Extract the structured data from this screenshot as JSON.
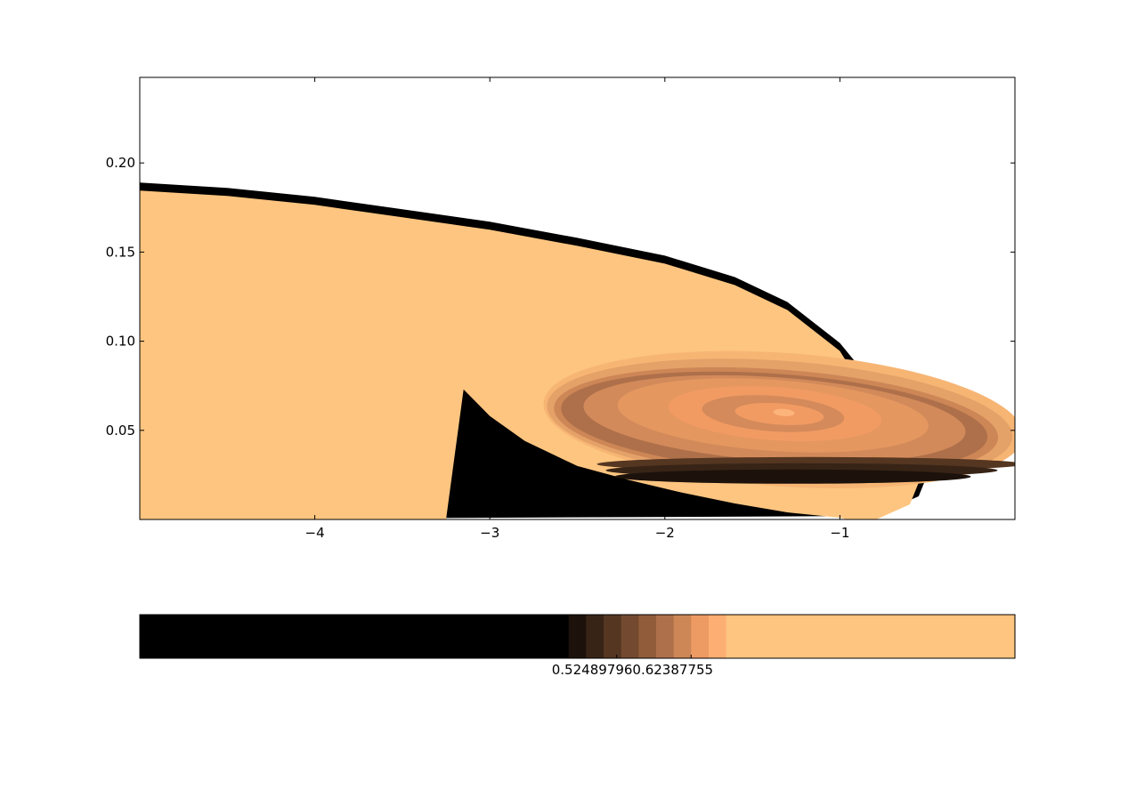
{
  "chart_data": {
    "type": "contourf",
    "title": "",
    "xlabel": "",
    "ylabel": "",
    "xlim": [
      -5.0,
      0.0
    ],
    "ylim": [
      0.0,
      0.248
    ],
    "x_ticks": [
      -4,
      -3,
      -2,
      -1
    ],
    "x_tick_labels": [
      "−4",
      "−3",
      "−2",
      "−1"
    ],
    "y_ticks": [
      0.05,
      0.1,
      0.15,
      0.2
    ],
    "y_tick_labels": [
      "0.05",
      "0.10",
      "0.15",
      "0.20"
    ],
    "grid": false,
    "colormap": "copper",
    "background_fill": "#fdc580",
    "outer_boundary": [
      [
        -5.0,
        0.189
      ],
      [
        -4.5,
        0.186
      ],
      [
        -4.0,
        0.181
      ],
      [
        -3.5,
        0.174
      ],
      [
        -3.0,
        0.167
      ],
      [
        -2.5,
        0.158
      ],
      [
        -2.0,
        0.148
      ],
      [
        -1.6,
        0.136
      ],
      [
        -1.3,
        0.122
      ],
      [
        -1.0,
        0.099
      ],
      [
        -0.8,
        0.075
      ],
      [
        -0.62,
        0.05
      ],
      [
        -0.48,
        0.03
      ],
      [
        -0.55,
        0.013
      ],
      [
        -0.8,
        0.002
      ]
    ],
    "bottom_boundary": [
      [
        -3.15,
        0.073
      ],
      [
        -3.0,
        0.058
      ],
      [
        -2.8,
        0.044
      ],
      [
        -2.5,
        0.03
      ],
      [
        -2.2,
        0.022
      ],
      [
        -1.9,
        0.015
      ],
      [
        -1.6,
        0.009
      ],
      [
        -1.3,
        0.004
      ],
      [
        -1.0,
        0.001
      ]
    ],
    "vortex_center": [
      -1.32,
      0.06
    ],
    "colorbar": {
      "tick_labels": [
        "0.52489796",
        "0.62387755"
      ],
      "bands": [
        {
          "fraction": 0.49,
          "color": "#000000"
        },
        {
          "fraction": 0.02,
          "color": "#1c120b"
        },
        {
          "fraction": 0.02,
          "color": "#382416"
        },
        {
          "fraction": 0.02,
          "color": "#543621"
        },
        {
          "fraction": 0.02,
          "color": "#734a2f"
        },
        {
          "fraction": 0.02,
          "color": "#905c3a"
        },
        {
          "fraction": 0.02,
          "color": "#ae704a"
        },
        {
          "fraction": 0.02,
          "color": "#cd8656"
        },
        {
          "fraction": 0.02,
          "color": "#ed9a63"
        },
        {
          "fraction": 0.02,
          "color": "#fdae72"
        },
        {
          "fraction": 0.33,
          "color": "#fdc580"
        }
      ]
    }
  }
}
